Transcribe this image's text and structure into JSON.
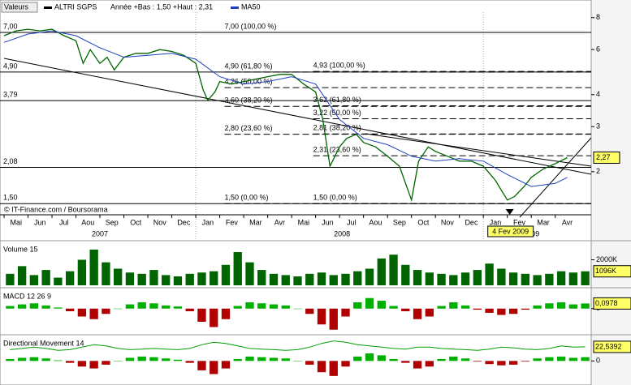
{
  "chart_data": [
    {
      "type": "line",
      "role": "price",
      "header": "Valeurs",
      "name": "ALTRI SGPS",
      "range_text": "Année +Bas : 1,50 +Haut : 2,31",
      "credit": "© IT-Finance.com / Boursorama",
      "log_scale": true,
      "xlim": [
        0,
        24.5
      ],
      "ylim": [
        1.46,
        8.4
      ],
      "yticks": [
        2,
        3,
        4,
        6,
        8
      ],
      "xticks": [
        {
          "value": 0,
          "label": "Mai"
        },
        {
          "value": 1,
          "label": "Jun"
        },
        {
          "value": 2,
          "label": "Jul"
        },
        {
          "value": 3,
          "label": "Aou"
        },
        {
          "value": 4,
          "label": "Sep"
        },
        {
          "value": 5,
          "label": "Oct"
        },
        {
          "value": 6,
          "label": "Nov"
        },
        {
          "value": 7,
          "label": "Dec"
        },
        {
          "value": 8,
          "label": "Jan"
        },
        {
          "value": 9,
          "label": "Fev"
        },
        {
          "value": 10,
          "label": "Mar"
        },
        {
          "value": 11,
          "label": "Avr"
        },
        {
          "value": 12,
          "label": "Mai"
        },
        {
          "value": 13,
          "label": "Jun"
        },
        {
          "value": 14,
          "label": "Jul"
        },
        {
          "value": 15,
          "label": "Aou"
        },
        {
          "value": 16,
          "label": "Sep"
        },
        {
          "value": 17,
          "label": "Oct"
        },
        {
          "value": 18,
          "label": "Nov"
        },
        {
          "value": 19,
          "label": "Dec"
        },
        {
          "value": 20,
          "label": "Jan"
        },
        {
          "value": 21,
          "label": "Fev"
        },
        {
          "value": 22,
          "label": "Mar"
        },
        {
          "value": 23,
          "label": "Avr"
        }
      ],
      "year_ticks": [
        {
          "value": 4,
          "label": "2007"
        },
        {
          "value": 14.1,
          "label": "2008"
        },
        {
          "value": 22,
          "label": "2009"
        }
      ],
      "year_separators": [
        8,
        20
      ],
      "levels": [
        {
          "value": 7.0,
          "label": "7,00"
        },
        {
          "value": 4.9,
          "label": "4,90"
        },
        {
          "value": 3.79,
          "label": "3,79"
        },
        {
          "value": 2.08,
          "label": "2,08"
        },
        {
          "value": 1.5,
          "label": "1,50"
        }
      ],
      "fibonacci": [
        {
          "x": 9.2,
          "value": 7.0,
          "label": "7,00 (100,00 %)"
        },
        {
          "x": 9.2,
          "value": 4.9,
          "label": "4,90 (61,80 %)"
        },
        {
          "x": 9.2,
          "value": 4.26,
          "label": "4,26 (50,00 %)"
        },
        {
          "x": 9.2,
          "value": 3.6,
          "label": "3,60 (38,20 %)"
        },
        {
          "x": 9.2,
          "value": 2.8,
          "label": "2,80 (23,60 %)"
        },
        {
          "x": 9.2,
          "value": 1.5,
          "label": "1,50 (0,00 %)"
        },
        {
          "x": 12.9,
          "value": 4.93,
          "label": "4,93 (100,00 %)"
        },
        {
          "x": 12.9,
          "value": 3.62,
          "label": "3,62 (61,80 %)"
        },
        {
          "x": 12.9,
          "value": 3.22,
          "label": "3,22 (50,00 %)"
        },
        {
          "x": 12.9,
          "value": 2.81,
          "label": "2,81 (38,20 %)"
        },
        {
          "x": 12.9,
          "value": 2.31,
          "label": "2,31 (23,60 %)"
        },
        {
          "x": 12.9,
          "value": 1.5,
          "label": "1,50 (0,00 %)"
        }
      ],
      "series": [
        {
          "name": "ALTRI SGPS",
          "color": "#006400",
          "x": [
            0,
            0.5,
            1,
            1.5,
            2,
            2.5,
            3,
            3.3,
            3.6,
            4,
            4.3,
            4.6,
            5,
            5.5,
            6,
            6.5,
            7,
            7.5,
            8,
            8.3,
            8.5,
            8.8,
            9,
            9.5,
            10,
            10.5,
            11,
            11.5,
            12,
            12.5,
            13,
            13.3,
            13.6,
            14,
            14.3,
            14.7,
            15,
            15.5,
            16,
            16.5,
            17,
            17.3,
            17.7,
            18,
            18.5,
            19,
            19.5,
            20,
            20.5,
            21,
            21.3,
            21.7,
            22,
            22.5,
            23,
            23.5
          ],
          "values": [
            6.8,
            7.1,
            7.2,
            7.1,
            7.2,
            6.8,
            6.5,
            5.3,
            6.0,
            5.3,
            5.6,
            5.0,
            5.6,
            5.8,
            5.8,
            6.0,
            5.9,
            5.7,
            5.3,
            4.2,
            3.8,
            4.1,
            4.5,
            4.4,
            4.5,
            4.6,
            4.7,
            4.8,
            4.8,
            4.4,
            4.1,
            3.2,
            2.1,
            2.5,
            2.7,
            2.8,
            2.6,
            2.5,
            2.3,
            2.1,
            1.55,
            2.2,
            2.5,
            2.4,
            2.3,
            2.2,
            2.2,
            2.1,
            1.85,
            1.55,
            1.6,
            1.75,
            1.9,
            2.05,
            2.15,
            2.27
          ]
        },
        {
          "name": "MA50",
          "color": "#1f3fbf",
          "x": [
            0,
            1,
            2,
            3,
            4,
            5,
            6,
            7,
            8,
            9,
            10,
            11,
            12,
            13,
            14,
            15,
            16,
            17,
            18,
            19,
            20,
            21,
            22,
            23,
            23.5
          ],
          "values": [
            6.4,
            6.9,
            7.1,
            6.8,
            6.1,
            5.6,
            5.7,
            5.8,
            5.5,
            4.7,
            4.4,
            4.5,
            4.7,
            4.4,
            3.2,
            2.7,
            2.55,
            2.3,
            2.2,
            2.25,
            2.2,
            1.95,
            1.75,
            1.8,
            1.9
          ]
        }
      ],
      "last_price": {
        "value": 2.27,
        "label": "2,27"
      },
      "annotation": {
        "x": 21.1,
        "label": "4 Fev 2009"
      }
    },
    {
      "type": "bar",
      "role": "volume",
      "title": "Volume 15",
      "color": "#006400",
      "ylim": [
        0,
        3300
      ],
      "yticks": [
        {
          "value": 2000,
          "label": "2000K"
        }
      ],
      "values": [
        900,
        1500,
        800,
        1200,
        600,
        1100,
        2000,
        2800,
        1800,
        1300,
        1000,
        900,
        1200,
        800,
        700,
        900,
        1000,
        1100,
        1600,
        2600,
        1800,
        1200,
        900,
        800,
        700,
        900,
        1000,
        800,
        900,
        1100,
        1300,
        2100,
        2400,
        1600,
        1200,
        1000,
        900,
        800,
        1000,
        1200,
        1700,
        1300,
        1000,
        900,
        800,
        900,
        1100,
        1000,
        1096
      ],
      "value_labels": {
        "48": "1096K"
      }
    },
    {
      "type": "bar",
      "role": "macd",
      "title": "MACD 12 26 9",
      "up_color": "#00b000",
      "down_color": "#b00000",
      "ylim": [
        -0.45,
        0.35
      ],
      "yticks": [
        0
      ],
      "values": [
        0.05,
        0.08,
        0.1,
        0.06,
        0.02,
        -0.05,
        -0.15,
        -0.2,
        -0.1,
        0.0,
        0.08,
        0.12,
        0.1,
        0.06,
        0.04,
        -0.05,
        -0.25,
        -0.35,
        -0.2,
        0.05,
        0.12,
        0.1,
        0.08,
        0.06,
        0.0,
        -0.1,
        -0.3,
        -0.4,
        -0.15,
        0.12,
        0.2,
        0.15,
        0.05,
        -0.05,
        -0.2,
        -0.15,
        0.05,
        0.12,
        0.06,
        -0.02,
        -0.08,
        -0.12,
        -0.1,
        -0.02,
        0.06,
        0.1,
        0.12,
        0.08,
        0.0978
      ],
      "value_labels": {
        "48": "0,0978"
      }
    },
    {
      "type": "bar",
      "role": "dm",
      "title": "Directional Movement 14",
      "up_color": "#00b000",
      "down_color": "#b00000",
      "line_color": "#00a000",
      "ylim": [
        -32,
        38
      ],
      "yticks": [
        0
      ],
      "values": [
        3,
        5,
        6,
        4,
        1,
        -3,
        -9,
        -12,
        -6,
        0,
        5,
        7,
        6,
        4,
        2,
        -3,
        -15,
        -21,
        -12,
        3,
        7,
        6,
        5,
        4,
        0,
        -6,
        -18,
        -24,
        -9,
        7,
        12,
        9,
        3,
        -3,
        -12,
        -9,
        3,
        7,
        4,
        -1,
        -5,
        -7,
        -6,
        -1,
        4,
        6,
        7,
        5,
        6
      ],
      "line": [
        18,
        20,
        22,
        20,
        17,
        18,
        22,
        26,
        24,
        20,
        18,
        19,
        20,
        19,
        18,
        20,
        26,
        30,
        28,
        24,
        20,
        19,
        18,
        17,
        18,
        22,
        28,
        32,
        30,
        26,
        24,
        22,
        20,
        19,
        22,
        22,
        20,
        19,
        18,
        17,
        19,
        22,
        21,
        19,
        18,
        20,
        24,
        22,
        22.5392
      ],
      "value_labels": {
        "48": "22,5392"
      }
    }
  ]
}
